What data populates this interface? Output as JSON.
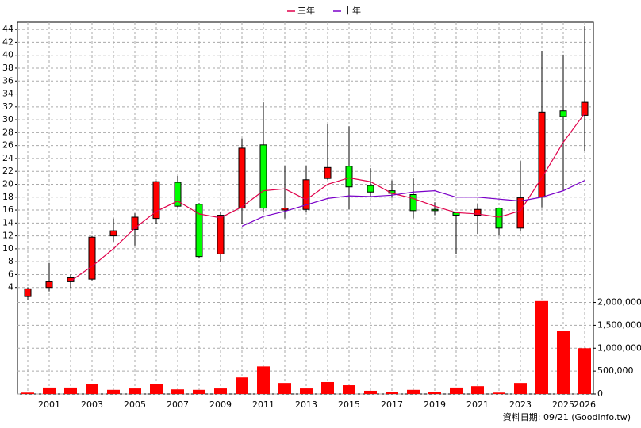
{
  "chart_data": {
    "type": "candlestick",
    "categories": [
      null,
      "2001",
      null,
      "2003",
      null,
      "2005",
      null,
      "2007",
      null,
      "2009",
      null,
      "2011",
      null,
      "2013",
      null,
      "2015",
      null,
      "2017",
      null,
      "2019",
      null,
      "2021",
      null,
      "2023",
      null,
      "2025",
      "2026"
    ],
    "open": [
      2.6,
      4.0,
      4.9,
      5.3,
      12.0,
      13.0,
      14.7,
      20.3,
      16.9,
      9.2,
      16.3,
      26.1,
      16.0,
      16.1,
      20.9,
      22.8,
      19.8,
      19.0,
      18.4,
      16.1,
      15.6,
      15.2,
      16.3,
      13.2,
      18.0,
      31.4,
      30.7
    ],
    "high": [
      4.0,
      7.8,
      6.0,
      12.0,
      14.7,
      15.5,
      20.5,
      21.3,
      17.1,
      15.7,
      27.1,
      32.7,
      22.8,
      22.8,
      29.3,
      29.0,
      22.5,
      20.6,
      20.9,
      17.2,
      15.7,
      17.0,
      16.4,
      23.6,
      40.7,
      40.1,
      44.5
    ],
    "low": [
      2.0,
      3.4,
      3.9,
      5.1,
      11.1,
      10.5,
      13.9,
      16.4,
      8.5,
      7.9,
      13.8,
      15.7,
      14.7,
      15.7,
      20.7,
      16.1,
      18.1,
      17.9,
      14.7,
      15.2,
      9.2,
      12.3,
      12.2,
      12.8,
      16.4,
      19.1,
      25.1
    ],
    "close": [
      3.8,
      4.9,
      5.5,
      11.8,
      12.8,
      14.9,
      20.4,
      16.6,
      8.8,
      15.2,
      25.6,
      16.3,
      16.3,
      20.7,
      22.6,
      19.6,
      18.8,
      18.6,
      15.9,
      15.9,
      15.2,
      16.1,
      13.2,
      17.9,
      31.2,
      30.5,
      32.7
    ],
    "up_color": "#ff0000",
    "down_color": "#00ff00",
    "series": [
      {
        "name": "三年",
        "color": "#e0004a",
        "values": [
          null,
          null,
          5.0,
          7.3,
          10.0,
          13.2,
          15.8,
          17.4,
          15.4,
          14.8,
          16.5,
          19.0,
          19.3,
          17.6,
          20.0,
          21.0,
          20.4,
          18.6,
          17.8,
          16.6,
          15.6,
          15.4,
          14.9,
          15.9,
          21.0,
          26.5,
          31.0
        ]
      },
      {
        "name": "十年",
        "color": "#7a00c8",
        "values": [
          null,
          null,
          null,
          null,
          null,
          null,
          null,
          null,
          null,
          null,
          13.5,
          15.0,
          15.8,
          16.8,
          17.8,
          18.2,
          18.1,
          18.3,
          18.8,
          19.0,
          18.0,
          18.0,
          17.7,
          17.4,
          18.0,
          19.0,
          20.6
        ]
      }
    ],
    "volume": {
      "color": "#ff0000",
      "axis": "y2",
      "values": [
        30000,
        140000,
        140000,
        210000,
        90000,
        120000,
        210000,
        100000,
        90000,
        120000,
        360000,
        600000,
        240000,
        120000,
        260000,
        190000,
        70000,
        50000,
        90000,
        50000,
        140000,
        170000,
        30000,
        240000,
        2030000,
        1380000,
        1000000
      ]
    },
    "ylim": [
      2,
      45
    ],
    "yticks": [
      4,
      6,
      8,
      10,
      12,
      14,
      16,
      18,
      20,
      22,
      24,
      26,
      28,
      30,
      32,
      34,
      36,
      38,
      40,
      42,
      44
    ],
    "y2lim": [
      0,
      2200000
    ],
    "y2ticks": [
      0,
      {
        "value": 500000,
        "label": "500,000"
      },
      {
        "value": 1000000,
        "label": "1,000,000"
      },
      {
        "value": 1500000,
        "label": "1,500,000"
      },
      {
        "value": 2000000,
        "label": "2,000,000"
      }
    ],
    "grid": true,
    "footnote": "資料日期: 09/21 (Goodinfo.tw)"
  }
}
